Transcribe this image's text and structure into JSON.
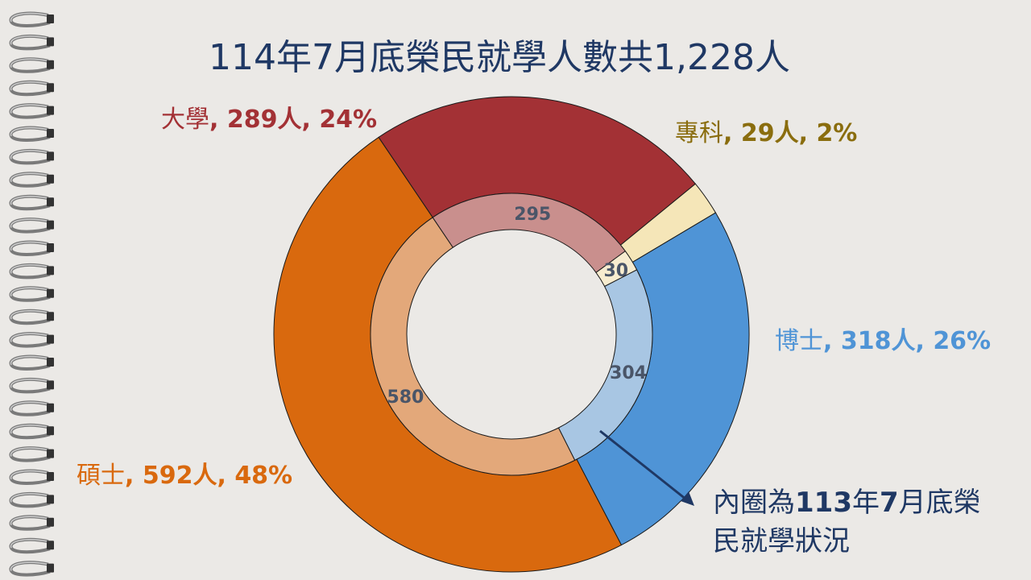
{
  "slide": {
    "title": "114年7月底榮民就學人數共1,228人",
    "note_text": "內圈為",
    "note_year": "113",
    "note_year_suffix": "年",
    "note_month": "7",
    "note_rest": "月底榮民就學狀況"
  },
  "chart_data": {
    "type": "donut",
    "title": "114年7月底榮民就學人數共1,228人",
    "categories": [
      "大學",
      "專科",
      "博士",
      "碩士"
    ],
    "colors_outer": [
      "#a33135",
      "#f5e6b8",
      "#4f94d6",
      "#d9690e"
    ],
    "colors_inner": [
      "#c98f8d",
      "#f7eccf",
      "#a8c6e3",
      "#e3a87a"
    ],
    "series": [
      {
        "name": "114年7月底",
        "ring": "outer",
        "values": [
          289,
          29,
          318,
          592
        ],
        "percent_labels": [
          "24%",
          "2%",
          "26%",
          "48%"
        ],
        "unit": "人"
      },
      {
        "name": "113年7月底",
        "ring": "inner",
        "values": [
          295,
          30,
          304,
          580
        ]
      }
    ],
    "labels": {
      "university": {
        "cat": "大學",
        "value": "289人",
        "pct": "24%"
      },
      "junior": {
        "cat": "專科",
        "value": "29人",
        "pct": "2%"
      },
      "doctor": {
        "cat": "博士",
        "value": "318人",
        "pct": "26%"
      },
      "master": {
        "cat": "碩士",
        "value": "592人",
        "pct": "48%"
      }
    }
  }
}
